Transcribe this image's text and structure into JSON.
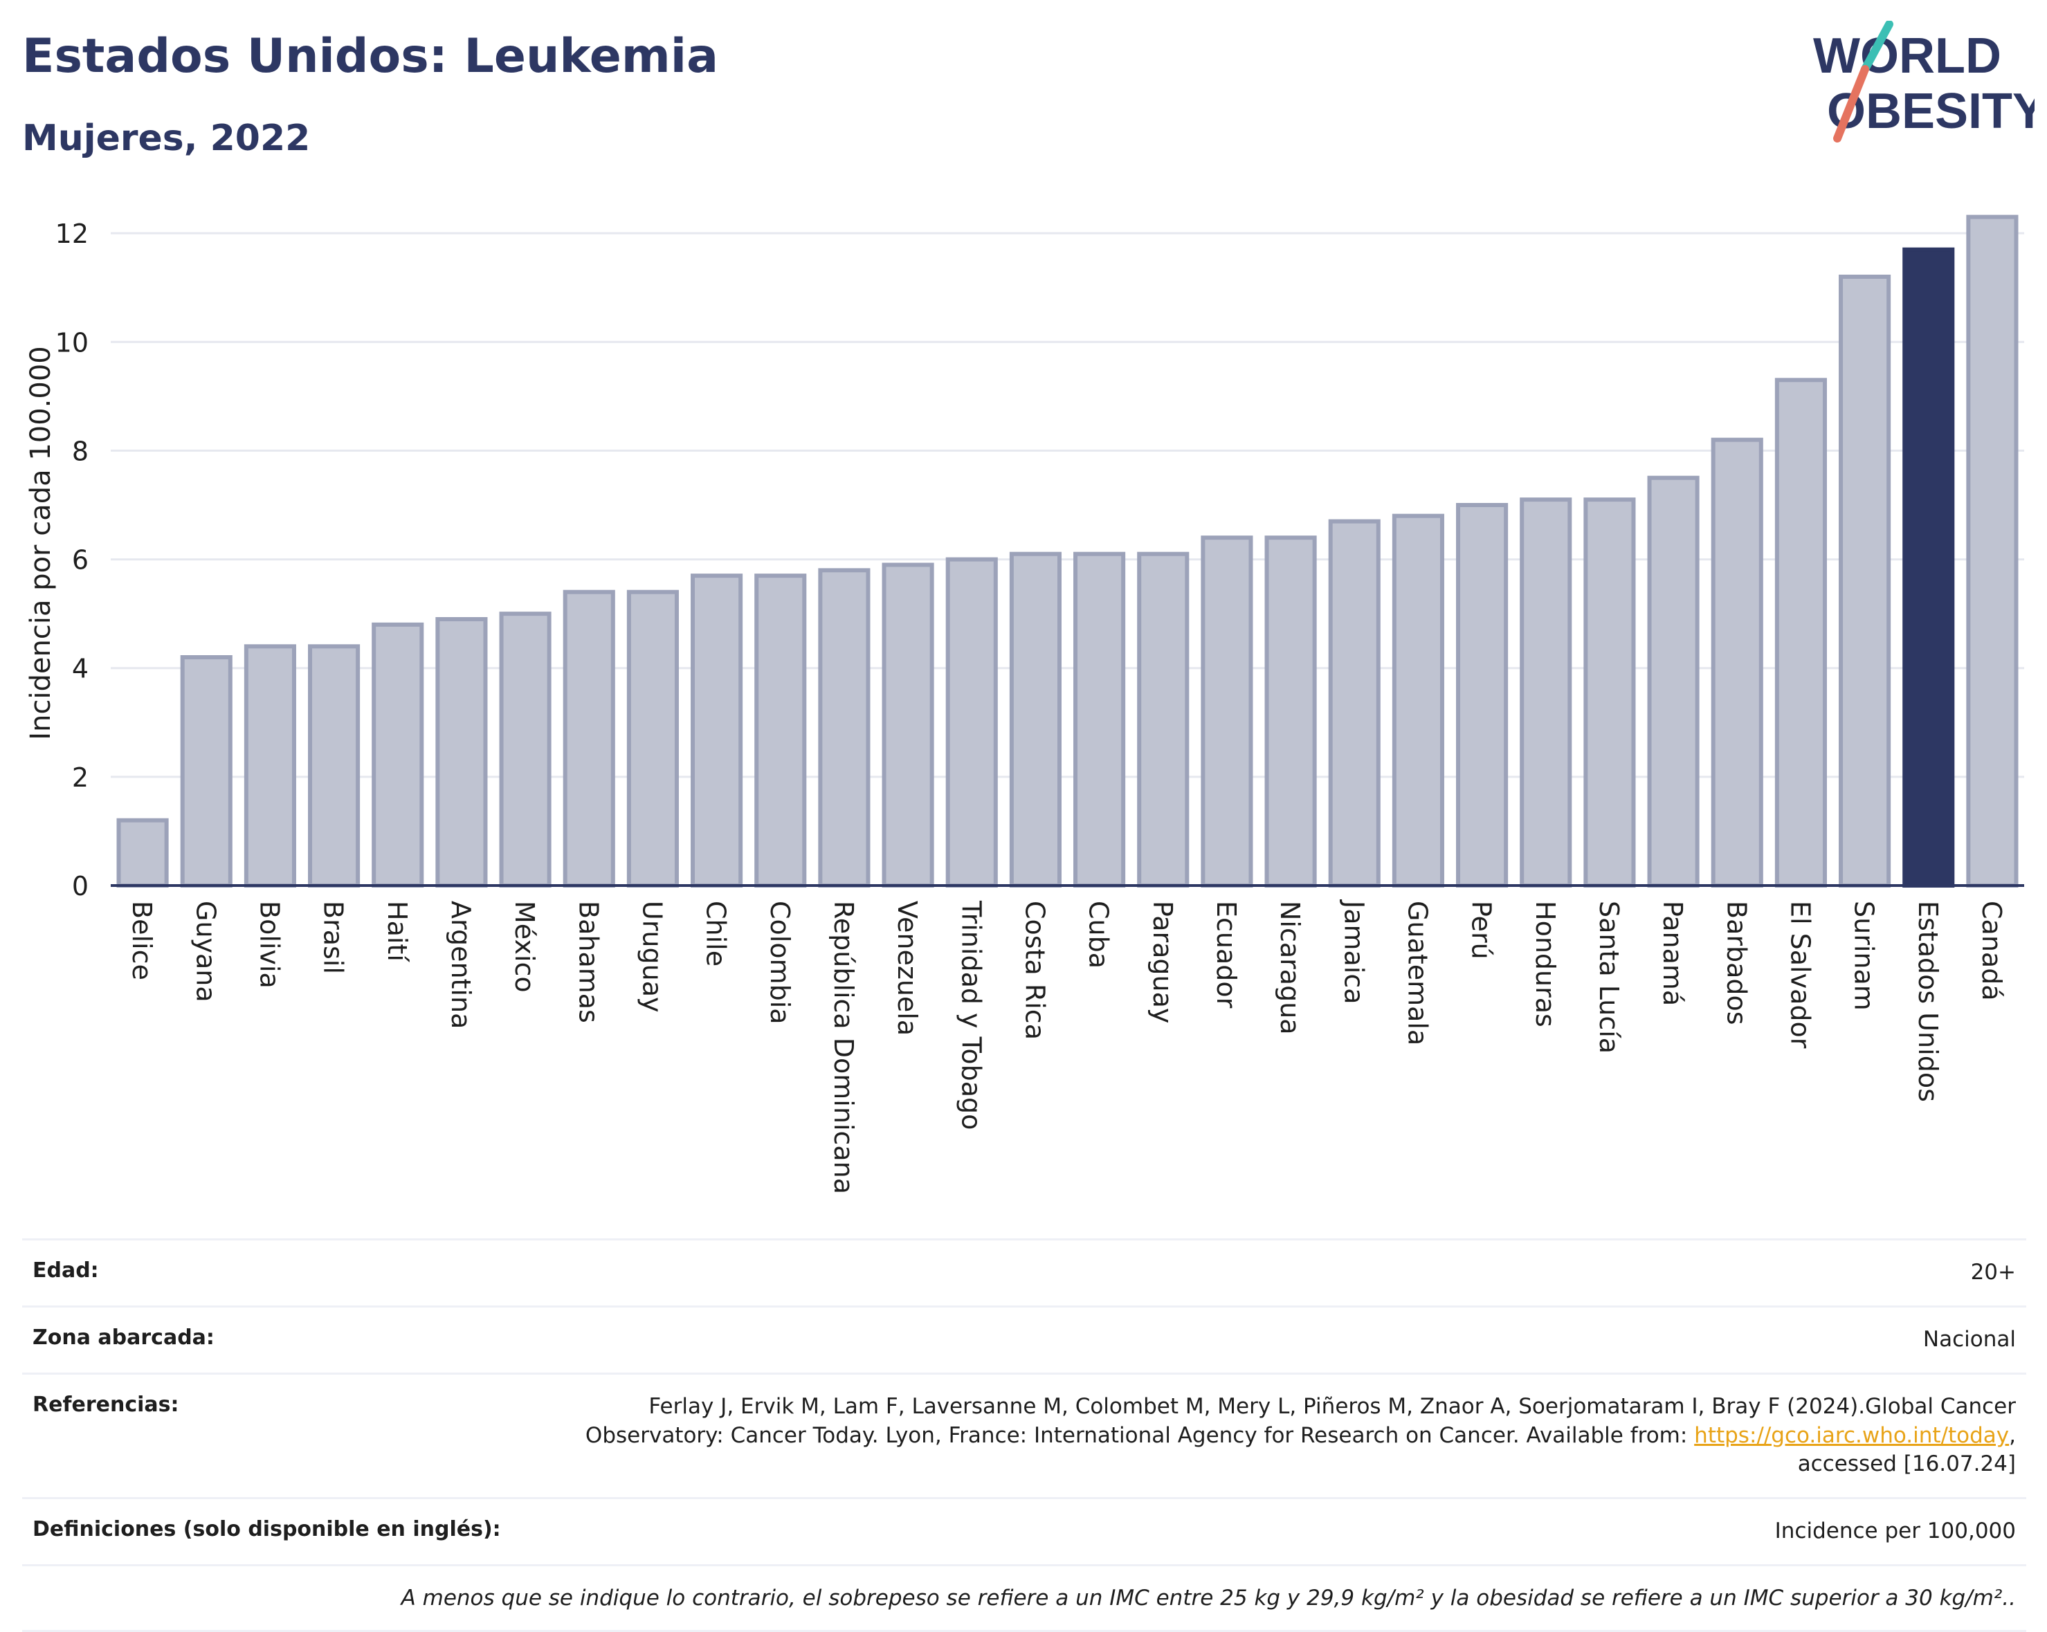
{
  "header": {
    "title": "Estados Unidos: Leukemia",
    "subtitle": "Mujeres, 2022"
  },
  "logo": {
    "line1": "WORLD",
    "line2": "OBESITY"
  },
  "colors": {
    "bar": "#bfc3d1",
    "bar_stroke": "#9ca2b9",
    "highlight": "#2d3763",
    "grid": "#e6e8ef",
    "axis": "#2d3763"
  },
  "chart_data": {
    "type": "bar",
    "ylabel": "Incidencia por cada 100.000",
    "ylim": [
      0,
      12.6
    ],
    "yticks": [
      0,
      2,
      4,
      6,
      8,
      10,
      12
    ],
    "highlight": "Estados Unidos",
    "categories": [
      "Belice",
      "Guyana",
      "Bolivia",
      "Brasil",
      "Haití",
      "Argentina",
      "México",
      "Bahamas",
      "Uruguay",
      "Chile",
      "Colombia",
      "República Dominicana",
      "Venezuela",
      "Trinidad y Tobago",
      "Costa Rica",
      "Cuba",
      "Paraguay",
      "Ecuador",
      "Nicaragua",
      "Jamaica",
      "Guatemala",
      "Perú",
      "Honduras",
      "Santa Lucía",
      "Panamá",
      "Barbados",
      "El Salvador",
      "Surinam",
      "Estados Unidos",
      "Canadá"
    ],
    "values": [
      1.2,
      4.2,
      4.4,
      4.4,
      4.8,
      4.9,
      5.0,
      5.4,
      5.4,
      5.7,
      5.7,
      5.8,
      5.9,
      6.0,
      6.1,
      6.1,
      6.1,
      6.4,
      6.4,
      6.7,
      6.8,
      7.0,
      7.1,
      7.1,
      7.5,
      8.2,
      9.3,
      11.2,
      11.7,
      12.3
    ]
  },
  "info": {
    "age_label": "Edad:",
    "age_value": "20+",
    "area_label": "Zona abarcada:",
    "area_value": "Nacional",
    "refs_label": "Referencias:",
    "refs_text1": "Ferlay J, Ervik M, Lam F, Laversanne M, Colombet M, Mery L, Piñeros M, Znaor A, Soerjomataram I, Bray F (2024).Global Cancer Observatory: Cancer Today. Lyon, France: International Agency for Research on Cancer. Available from: ",
    "refs_link": "https://gco.iarc.who.int/today",
    "refs_text2": ", accessed [16.07.24]",
    "defs_label": "Definiciones (solo disponible en inglés):",
    "defs_value": "Incidence per 100,000",
    "note": "A menos que se indique lo contrario, el sobrepeso se refiere a un IMC entre 25 kg y 29,9 kg/m² y la obesidad se refiere a un IMC superior a 30 kg/m².."
  }
}
